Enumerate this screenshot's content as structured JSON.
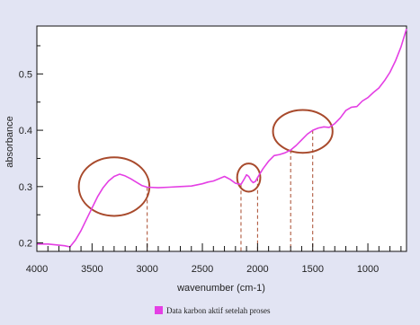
{
  "chart_data": {
    "type": "line",
    "xlabel": "wavenumber (cm-1)",
    "ylabel": "absorbance",
    "xlim": [
      4000,
      650
    ],
    "ylim": [
      0.185,
      0.585
    ],
    "x_ticks": [
      4000,
      3500,
      3000,
      2500,
      2000,
      1500,
      1000
    ],
    "x_tick_labels": [
      "4000",
      "3500",
      "3000",
      "2500",
      "2000",
      "1500",
      "1000"
    ],
    "y_ticks": [
      0.2,
      0.3,
      0.4,
      0.5
    ],
    "y_tick_labels": [
      "0.2",
      "0.3",
      "0.4",
      "0.5"
    ],
    "grid": false,
    "legend_position": "bottom-center",
    "series": [
      {
        "name": "Data karbon aktif setelah proses",
        "color": "#e43fe4",
        "x": [
          4000,
          3900,
          3800,
          3750,
          3700,
          3650,
          3600,
          3550,
          3500,
          3450,
          3400,
          3350,
          3300,
          3250,
          3200,
          3150,
          3100,
          3050,
          3000,
          2900,
          2800,
          2700,
          2600,
          2500,
          2450,
          2400,
          2350,
          2300,
          2250,
          2200,
          2180,
          2150,
          2120,
          2100,
          2080,
          2060,
          2040,
          2020,
          2000,
          1950,
          1900,
          1850,
          1800,
          1750,
          1700,
          1650,
          1600,
          1550,
          1500,
          1450,
          1400,
          1350,
          1300,
          1250,
          1200,
          1150,
          1100,
          1050,
          1000,
          950,
          900,
          850,
          800,
          750,
          700,
          650
        ],
        "y": [
          0.198,
          0.198,
          0.196,
          0.195,
          0.193,
          0.205,
          0.222,
          0.242,
          0.262,
          0.282,
          0.298,
          0.31,
          0.318,
          0.322,
          0.319,
          0.314,
          0.308,
          0.302,
          0.299,
          0.298,
          0.299,
          0.3,
          0.301,
          0.305,
          0.308,
          0.31,
          0.314,
          0.318,
          0.313,
          0.306,
          0.305,
          0.304,
          0.314,
          0.321,
          0.318,
          0.311,
          0.307,
          0.309,
          0.316,
          0.332,
          0.345,
          0.355,
          0.357,
          0.36,
          0.365,
          0.373,
          0.383,
          0.393,
          0.4,
          0.404,
          0.406,
          0.405,
          0.412,
          0.422,
          0.435,
          0.441,
          0.442,
          0.452,
          0.458,
          0.467,
          0.475,
          0.488,
          0.503,
          0.523,
          0.548,
          0.58
        ]
      }
    ],
    "annotation_lines_x": [
      3000,
      2150,
      2000,
      1700,
      1500
    ],
    "annotation_circles": [
      {
        "cx": 3300,
        "cy": 0.3,
        "rx": 320,
        "ry": 0.052
      },
      {
        "cx": 2080,
        "cy": 0.316,
        "rx": 105,
        "ry": 0.025
      },
      {
        "cx": 1590,
        "cy": 0.398,
        "rx": 270,
        "ry": 0.038
      }
    ],
    "colors": {
      "background": "#e2e4f3",
      "plot_area": "#ffffff",
      "series": "#e43fe4",
      "annotation": "#a84a2c"
    }
  }
}
